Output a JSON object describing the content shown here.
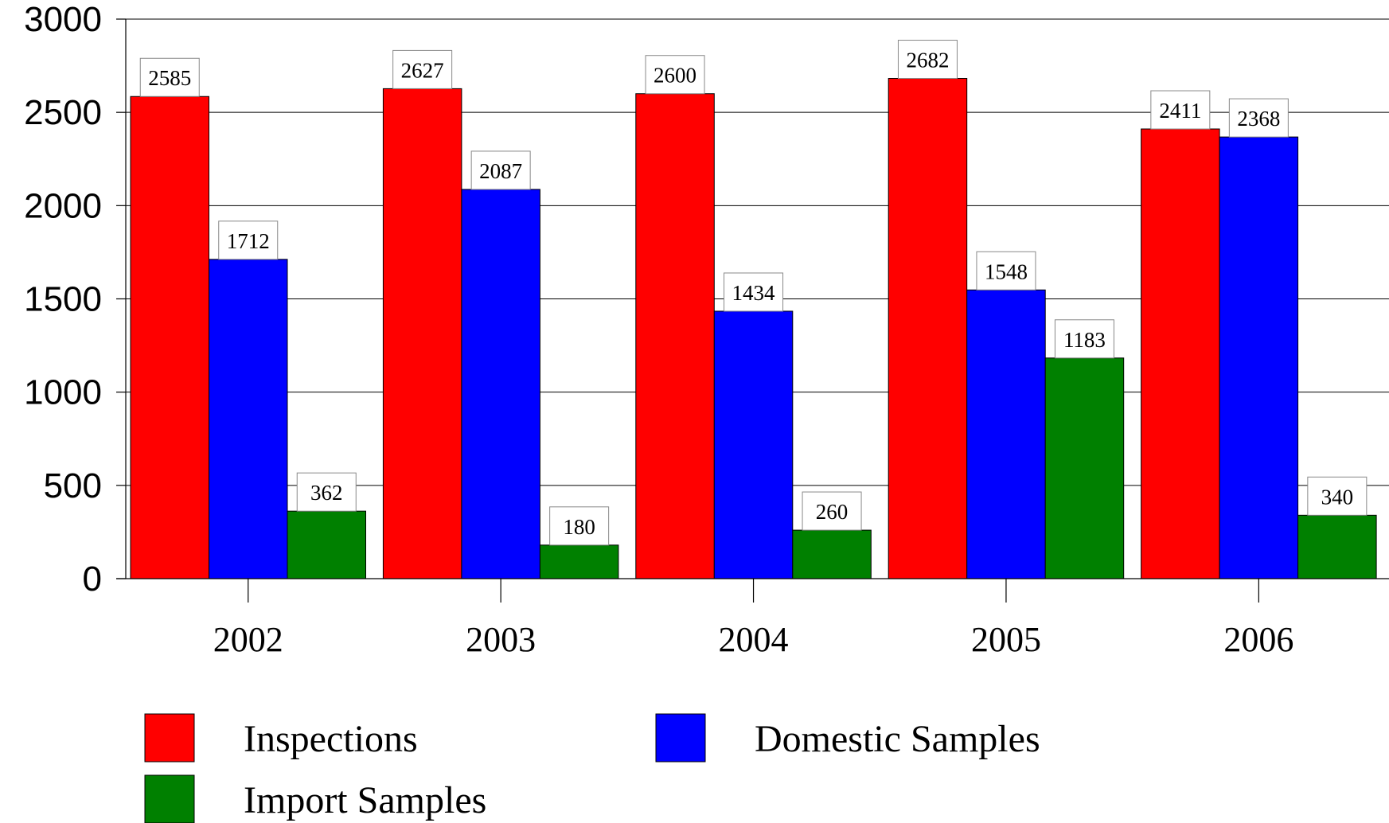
{
  "chart_data": {
    "type": "bar",
    "title": "",
    "xlabel": "",
    "ylabel": "",
    "categories": [
      "2002",
      "2003",
      "2004",
      "2005",
      "2006"
    ],
    "ylim": [
      0,
      3000
    ],
    "yticks": [
      0,
      500,
      1000,
      1500,
      2000,
      2500,
      3000
    ],
    "grid": true,
    "legend_position": "bottom",
    "series": [
      {
        "name": "Inspections",
        "color": "#ff0000",
        "values": [
          2585,
          2627,
          2600,
          2682,
          2411
        ]
      },
      {
        "name": "Domestic Samples",
        "color": "#0000ff",
        "values": [
          1712,
          2087,
          1434,
          1548,
          2368
        ]
      },
      {
        "name": "Import Samples",
        "color": "#008000",
        "values": [
          362,
          180,
          260,
          1183,
          340
        ]
      }
    ]
  }
}
